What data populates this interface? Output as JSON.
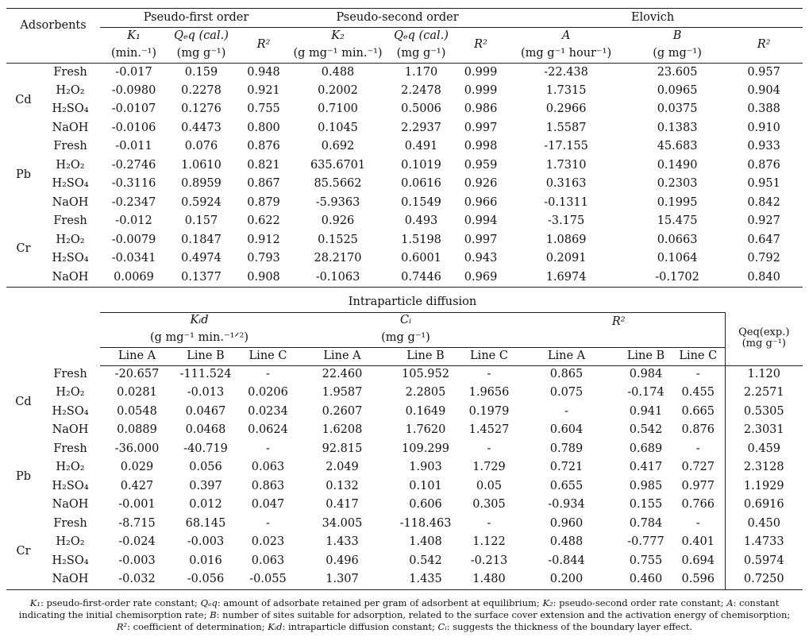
{
  "table1": {
    "stub_header": "Adsorbents",
    "groups": [
      "Pseudo-first order",
      "Pseudo-second order",
      "Elovich"
    ],
    "param_rows": [
      [
        "K₁",
        "Qₑq (cal.)",
        "R²",
        "K₂",
        "Qₑq (cal.)",
        "R²",
        "A",
        "B",
        "R²"
      ],
      [
        "(min.⁻¹)",
        "(mg g⁻¹)",
        "",
        "(g mg⁻¹ min.⁻¹)",
        "(mg g⁻¹)",
        "",
        "(mg g⁻¹ hour⁻¹)",
        "(g mg⁻¹)",
        ""
      ]
    ],
    "blocks": [
      {
        "metal": "Cd",
        "rows": [
          {
            "treatment": "Fresh",
            "values": [
              "-0.017",
              "0.159",
              "0.948",
              "0.488",
              "1.170",
              "0.999",
              "-22.438",
              "23.605",
              "0.957"
            ]
          },
          {
            "treatment": "H₂O₂",
            "values": [
              "-0.0980",
              "0.2278",
              "0.921",
              "0.2002",
              "2.2478",
              "0.999",
              "1.7315",
              "0.0965",
              "0.904"
            ]
          },
          {
            "treatment": "H₂SO₄",
            "values": [
              "-0.0107",
              "0.1276",
              "0.755",
              "0.7100",
              "0.5006",
              "0.986",
              "0.2966",
              "0.0375",
              "0.388"
            ]
          },
          {
            "treatment": "NaOH",
            "values": [
              "-0.0106",
              "0.4473",
              "0.800",
              "0.1045",
              "2.2937",
              "0.997",
              "1.5587",
              "0.1383",
              "0.910"
            ]
          }
        ]
      },
      {
        "metal": "Pb",
        "rows": [
          {
            "treatment": "Fresh",
            "values": [
              "-0.011",
              "0.076",
              "0.876",
              "0.692",
              "0.491",
              "0.998",
              "-17.155",
              "45.683",
              "0.933"
            ]
          },
          {
            "treatment": "H₂O₂",
            "values": [
              "-0.2746",
              "1.0610",
              "0.821",
              "635.6701",
              "0.1019",
              "0.959",
              "1.7310",
              "0.1490",
              "0.876"
            ]
          },
          {
            "treatment": "H₂SO₄",
            "values": [
              "-0.3116",
              "0.8959",
              "0.867",
              "85.5662",
              "0.0616",
              "0.926",
              "0.3163",
              "0.2303",
              "0.951"
            ]
          },
          {
            "treatment": "NaOH",
            "values": [
              "-0.2347",
              "0.5924",
              "0.879",
              "-5.9363",
              "0.1549",
              "0.966",
              "-0.1311",
              "0.1995",
              "0.842"
            ]
          }
        ]
      },
      {
        "metal": "Cr",
        "rows": [
          {
            "treatment": "Fresh",
            "values": [
              "-0.012",
              "0.157",
              "0.622",
              "0.926",
              "0.493",
              "0.994",
              "-3.175",
              "15.475",
              "0.927"
            ]
          },
          {
            "treatment": "H₂O₂",
            "values": [
              "-0.0079",
              "0.1847",
              "0.912",
              "0.1525",
              "1.5198",
              "0.997",
              "1.0869",
              "0.0663",
              "0.647"
            ]
          },
          {
            "treatment": "H₂SO₄",
            "values": [
              "-0.0341",
              "0.4974",
              "0.793",
              "28.2170",
              "0.6001",
              "0.943",
              "0.2091",
              "0.1064",
              "0.792"
            ]
          },
          {
            "treatment": "NaOH",
            "values": [
              "0.0069",
              "0.1377",
              "0.908",
              "-0.1063",
              "0.7446",
              "0.969",
              "1.6974",
              "-0.1702",
              "0.840"
            ]
          }
        ]
      }
    ]
  },
  "table2": {
    "group": "Intraparticle diffusion",
    "params": [
      {
        "symbol": "Kᵢd",
        "unit": "(g mg⁻¹ min.⁻¹ᐟ²)"
      },
      {
        "symbol": "Cᵢ",
        "unit": "(mg g⁻¹)"
      },
      {
        "symbol": "R²",
        "unit": ""
      }
    ],
    "qexp_label": "Qeq(exp.)",
    "qexp_unit": "(mg g⁻¹)",
    "lines": [
      "Line A",
      "Line B",
      "Line C",
      "Line A",
      "Line B",
      "Line C",
      "Line A",
      "Line B",
      "Line C"
    ],
    "blocks": [
      {
        "metal": "Cd",
        "rows": [
          {
            "treatment": "Fresh",
            "values": [
              "-20.657",
              "-111.524",
              "-",
              "22.460",
              "105.952",
              "-",
              "0.865",
              "0.984",
              "-",
              "1.120"
            ]
          },
          {
            "treatment": "H₂O₂",
            "values": [
              "0.0281",
              "-0.013",
              "0.0206",
              "1.9587",
              "2.2805",
              "1.9656",
              "0.075",
              "-0.174",
              "0.455",
              "2.2571"
            ]
          },
          {
            "treatment": "H₂SO₄",
            "values": [
              "0.0548",
              "0.0467",
              "0.0234",
              "0.2607",
              "0.1649",
              "0.1979",
              "-",
              "0.941",
              "0.665",
              "0.5305"
            ]
          },
          {
            "treatment": "NaOH",
            "values": [
              "0.0889",
              "0.0468",
              "0.0624",
              "1.6208",
              "1.7620",
              "1.4527",
              "0.604",
              "0.542",
              "0.876",
              "2.3031"
            ]
          }
        ]
      },
      {
        "metal": "Pb",
        "rows": [
          {
            "treatment": "Fresh",
            "values": [
              "-36.000",
              "-40.719",
              "-",
              "92.815",
              "109.299",
              "-",
              "0.789",
              "0.689",
              "-",
              "0.459"
            ]
          },
          {
            "treatment": "H₂O₂",
            "values": [
              "0.029",
              "0.056",
              "0.063",
              "2.049",
              "1.903",
              "1.729",
              "0.721",
              "0.417",
              "0.727",
              "2.3128"
            ]
          },
          {
            "treatment": "H₂SO₄",
            "values": [
              "0.427",
              "0.397",
              "0.863",
              "0.132",
              "0.101",
              "0.05",
              "0.655",
              "0.985",
              "0.977",
              "1.1929"
            ]
          },
          {
            "treatment": "NaOH",
            "values": [
              "-0.001",
              "0.012",
              "0.047",
              "0.417",
              "0.606",
              "0.305",
              "-0.934",
              "0.155",
              "0.766",
              "0.6916"
            ]
          }
        ]
      },
      {
        "metal": "Cr",
        "rows": [
          {
            "treatment": "Fresh",
            "values": [
              "-8.715",
              "68.145",
              "-",
              "34.005",
              "-118.463",
              "-",
              "0.960",
              "0.784",
              "-",
              "0.450"
            ]
          },
          {
            "treatment": "H₂O₂",
            "values": [
              "-0.024",
              "-0.003",
              "0.023",
              "1.433",
              "1.408",
              "1.122",
              "0.488",
              "-0.777",
              "0.401",
              "1.4733"
            ]
          },
          {
            "treatment": "H₂SO₄",
            "values": [
              "-0.003",
              "0.016",
              "0.063",
              "0.496",
              "0.542",
              "-0.213",
              "-0.844",
              "0.755",
              "0.694",
              "0.5974"
            ]
          },
          {
            "treatment": "NaOH",
            "values": [
              "-0.032",
              "-0.056",
              "-0.055",
              "1.307",
              "1.435",
              "1.480",
              "0.200",
              "0.460",
              "0.596",
              "0.7250"
            ]
          }
        ]
      }
    ]
  },
  "footnote": [
    {
      "term": "K₁",
      "text": ": pseudo-first-order rate constant; "
    },
    {
      "term": "Qₑq",
      "text": ": amount of adsorbate retained per gram of adsorbent at equilibrium; "
    },
    {
      "term": "K₂",
      "text": ": pseudo-second order rate constant; "
    },
    {
      "term": "A",
      "text": ": constant indicating the initial chemisorption rate; "
    },
    {
      "term": "B",
      "text": ": number of sites suitable for adsorption, related to the surface cover extension and the activation energy of chemisorption; "
    },
    {
      "term": "R²",
      "text": ": coefficient of determination; "
    },
    {
      "term": "Kᵢd",
      "text": ": intraparticle diffusion constant; "
    },
    {
      "term": "Cᵢ",
      "text": ": suggests the thickness of the boundary layer effect."
    }
  ]
}
